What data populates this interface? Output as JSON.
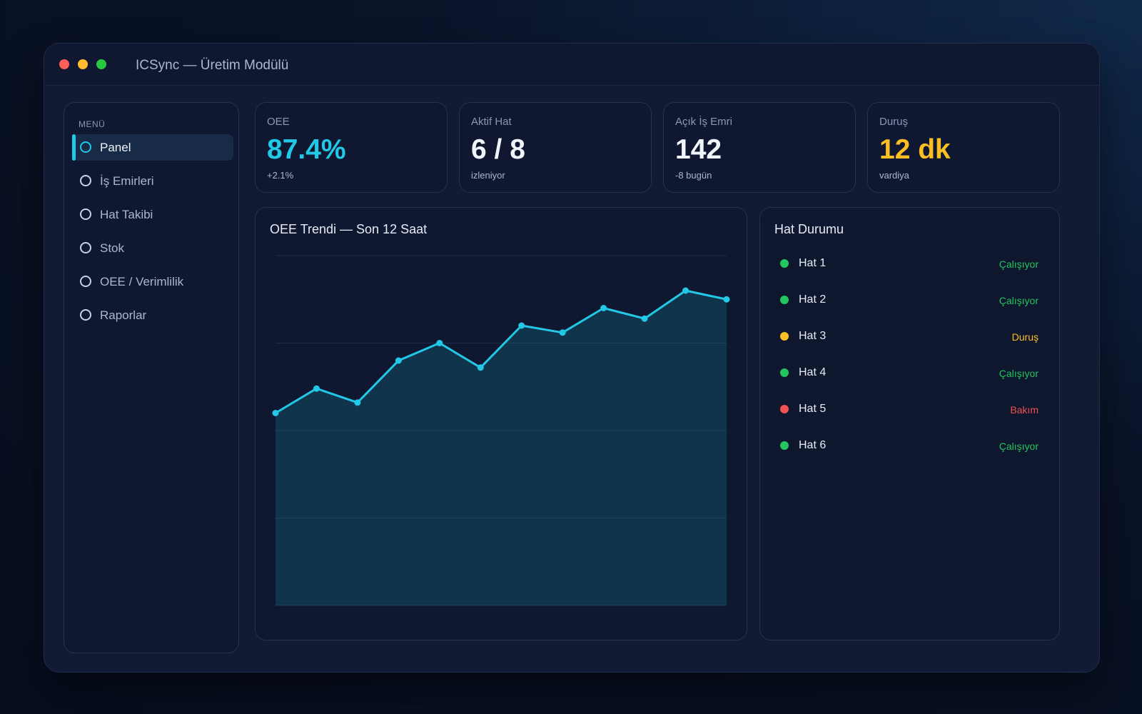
{
  "window": {
    "title": "ICSync — Üretim Modülü"
  },
  "sidebar": {
    "menu_label": "MENÜ",
    "items": [
      {
        "label": "Panel",
        "active": true
      },
      {
        "label": "İş Emirleri"
      },
      {
        "label": "Hat Takibi"
      },
      {
        "label": "Stok"
      },
      {
        "label": "OEE / Verimlilik"
      },
      {
        "label": "Raporlar"
      }
    ]
  },
  "kpis": [
    {
      "label": "OEE",
      "value": "87.4%",
      "sub": "+2.1%",
      "color": "#22c8e5"
    },
    {
      "label": "Aktif Hat",
      "value": "6 / 8",
      "sub": "izleniyor",
      "color": "#f2f5fa"
    },
    {
      "label": "Açık İş Emri",
      "value": "142",
      "sub": "-8 bugün",
      "color": "#f2f5fa"
    },
    {
      "label": "Duruş",
      "value": "12 dk",
      "sub": "vardiya",
      "color": "#fbbf24"
    }
  ],
  "chart": {
    "title": "OEE Trendi — Son 12 Saat"
  },
  "chart_data": {
    "type": "area",
    "title": "OEE Trendi — Son 12 Saat",
    "xlabel": "",
    "ylabel": "",
    "x": [
      1,
      2,
      3,
      4,
      5,
      6,
      7,
      8,
      9,
      10,
      11,
      12
    ],
    "values": [
      55,
      62,
      58,
      70,
      75,
      68,
      80,
      78,
      85,
      82,
      90,
      87.5
    ],
    "ylim": [
      0,
      100
    ],
    "grid": true,
    "legend": "none",
    "color": "#22c8e5"
  },
  "line_status": {
    "title": "Hat Durumu",
    "rows": [
      {
        "name": "Hat 1",
        "status": "Çalışıyor",
        "color": "#22c55e"
      },
      {
        "name": "Hat 2",
        "status": "Çalışıyor",
        "color": "#22c55e"
      },
      {
        "name": "Hat 3",
        "status": "Duruş",
        "color": "#fbbf24"
      },
      {
        "name": "Hat 4",
        "status": "Çalışıyor",
        "color": "#22c55e"
      },
      {
        "name": "Hat 5",
        "status": "Bakım",
        "color": "#f05252"
      },
      {
        "name": "Hat 6",
        "status": "Çalışıyor",
        "color": "#22c55e"
      }
    ]
  }
}
